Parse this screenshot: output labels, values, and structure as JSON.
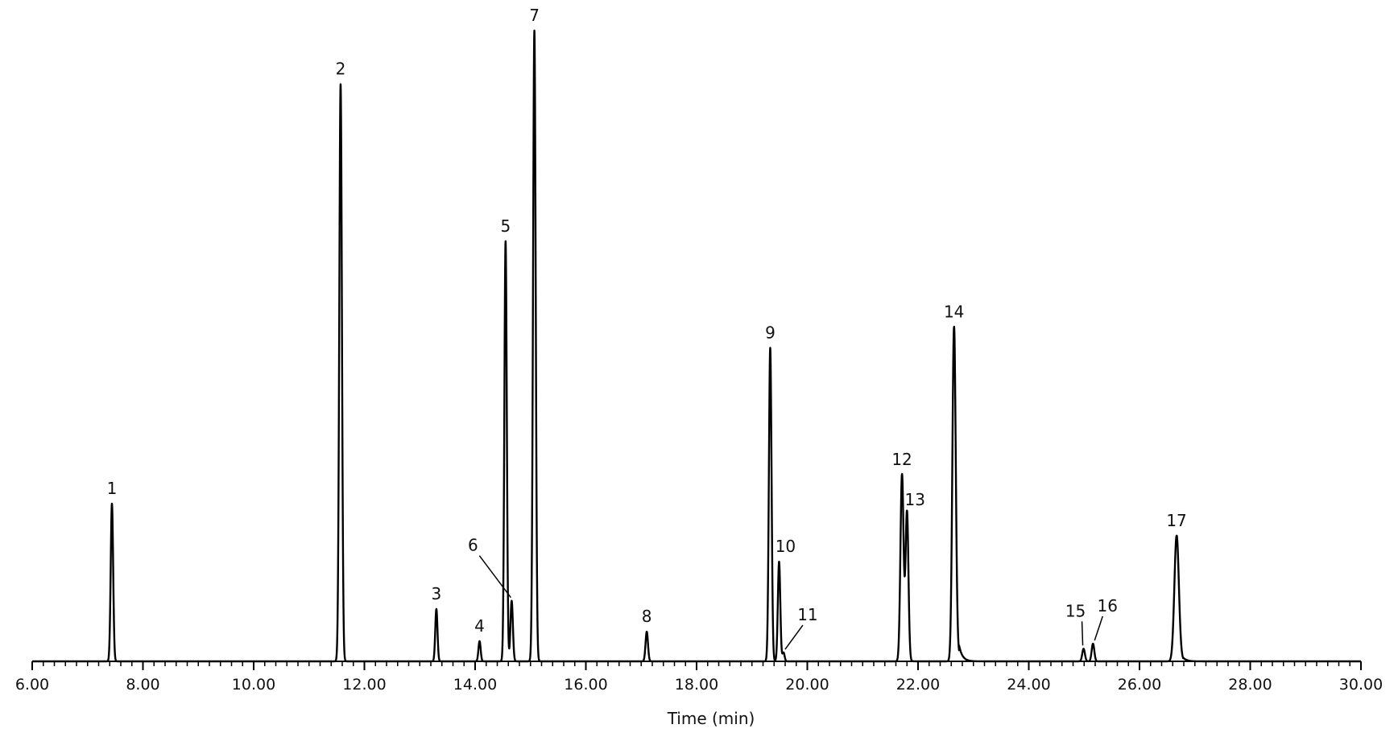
{
  "chart_data": {
    "type": "line",
    "xlabel": "Time (min)",
    "ylabel": "",
    "xlim": [
      6.0,
      30.0
    ],
    "y_axis_shown": false,
    "grid": false,
    "x_tick_labels": [
      "6.00",
      "8.00",
      "10.00",
      "12.00",
      "14.00",
      "16.00",
      "18.00",
      "20.00",
      "22.00",
      "24.00",
      "26.00",
      "28.00",
      "30.00"
    ],
    "x_ticks": [
      6,
      8,
      10,
      12,
      14,
      16,
      18,
      20,
      22,
      24,
      26,
      28,
      30
    ],
    "y_range_relative": [
      0,
      1.0
    ],
    "line_color": "#000000",
    "peaks": [
      {
        "label": "1",
        "time": 7.44,
        "height": 0.25,
        "width": 0.022,
        "tail": 0.0
      },
      {
        "label": "2",
        "time": 11.57,
        "height": 0.915,
        "width": 0.024,
        "tail": 0.0
      },
      {
        "label": "3",
        "time": 13.3,
        "height": 0.083,
        "width": 0.02,
        "tail": 0.0
      },
      {
        "label": "4",
        "time": 14.08,
        "height": 0.032,
        "width": 0.02,
        "tail": 0.0
      },
      {
        "label": "5",
        "time": 14.55,
        "height": 0.666,
        "width": 0.022,
        "tail": 0.0
      },
      {
        "label": "6",
        "time": 14.66,
        "height": 0.096,
        "width": 0.022,
        "tail": 0.0
      },
      {
        "label": "7",
        "time": 15.07,
        "height": 1.0,
        "width": 0.024,
        "tail": 0.0
      },
      {
        "label": "8",
        "time": 17.1,
        "height": 0.047,
        "width": 0.022,
        "tail": 0.0
      },
      {
        "label": "9",
        "time": 19.33,
        "height": 0.497,
        "width": 0.024,
        "tail": 0.0
      },
      {
        "label": "10",
        "time": 19.49,
        "height": 0.158,
        "width": 0.022,
        "tail": 0.0
      },
      {
        "label": "11",
        "time": 19.57,
        "height": 0.014,
        "width": 0.02,
        "tail": 0.0
      },
      {
        "label": "12",
        "time": 21.71,
        "height": 0.296,
        "width": 0.028,
        "tail": 0.02
      },
      {
        "label": "13",
        "time": 21.8,
        "height": 0.237,
        "width": 0.026,
        "tail": 0.02
      },
      {
        "label": "14",
        "time": 22.65,
        "height": 0.53,
        "width": 0.03,
        "tail": 0.06
      },
      {
        "label": "15",
        "time": 24.99,
        "height": 0.02,
        "width": 0.024,
        "tail": 0.0
      },
      {
        "label": "16",
        "time": 25.16,
        "height": 0.028,
        "width": 0.024,
        "tail": 0.0
      },
      {
        "label": "17",
        "time": 26.67,
        "height": 0.199,
        "width": 0.04,
        "tail": 0.06
      }
    ]
  }
}
